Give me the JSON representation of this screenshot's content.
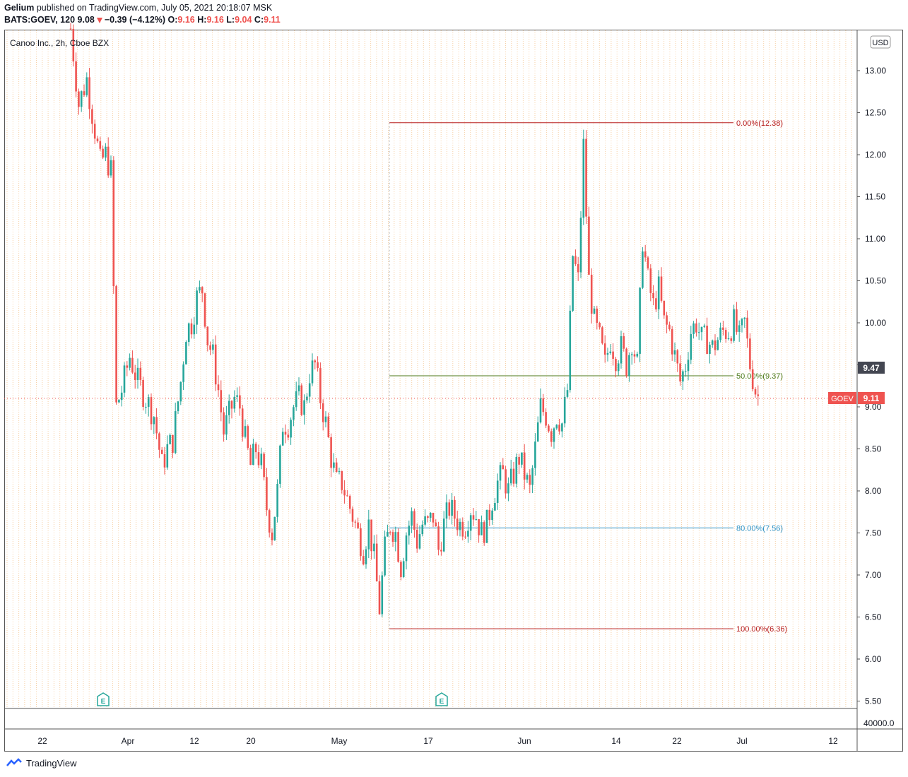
{
  "header": {
    "author": "Gelium",
    "published_text": "published on TradingView.com, July 05, 2021 20:18:07 MSK",
    "symbol": "BATS:GOEV, 120",
    "last": "9.08",
    "change": "−0.39 (−4.12%)",
    "o_label": "O:",
    "o": "9.16",
    "h_label": "H:",
    "h": "9.16",
    "l_label": "L:",
    "l": "9.04",
    "c_label": "C:",
    "c": "9.11"
  },
  "legend": {
    "title": "Canoo Inc., 2h, Cboe BZX"
  },
  "currency": "USD",
  "footer": {
    "brand": "TradingView"
  },
  "colors": {
    "up": "#26a69a",
    "down": "#ef5350",
    "fib0": "#b71c1c",
    "fib50": "#4c7a1a",
    "fib80": "#2a8fc2",
    "fib100": "#b71c1c"
  },
  "chart_data": {
    "type": "candlestick",
    "symbol": "GOEV",
    "last_price": 9.11,
    "crosshair_price": 9.47,
    "volume_label": "40000.0",
    "y_ticks": [
      13.0,
      12.5,
      12.0,
      11.5,
      11.0,
      10.5,
      10.0,
      9.5,
      9.0,
      8.5,
      8.0,
      7.5,
      7.0,
      6.5,
      6.0,
      5.5
    ],
    "y_tick_labels": [
      "13.00",
      "12.50",
      "12.00",
      "11.50",
      "11.00",
      "10.50",
      "10.00",
      "9.50",
      "9.00",
      "8.50",
      "8.00",
      "7.50",
      "7.00",
      "6.50",
      "6.00",
      "5.50"
    ],
    "x_ticks": [
      "22",
      "Apr",
      "12",
      "20",
      "May",
      "17",
      "Jun",
      "14",
      "22",
      "Jul",
      "12"
    ],
    "fib_levels": [
      {
        "label": "0.00%(12.38)",
        "value": 12.38
      },
      {
        "label": "50.00%(9.37)",
        "value": 9.37
      },
      {
        "label": "80.00%(7.56)",
        "value": 7.56
      },
      {
        "label": "100.00%(6.36)",
        "value": 6.36
      }
    ],
    "earnings_markers": [
      "E",
      "E"
    ],
    "path": [
      [
        0,
        13.5
      ],
      [
        3,
        12.6
      ],
      [
        6,
        12.9
      ],
      [
        9,
        12.3
      ],
      [
        11,
        11.9
      ],
      [
        13,
        12.0
      ],
      [
        15,
        11.8
      ],
      [
        17,
        9.0
      ],
      [
        19,
        9.2
      ],
      [
        22,
        9.6
      ],
      [
        25,
        9.3
      ],
      [
        28,
        9.1
      ],
      [
        31,
        8.9
      ],
      [
        34,
        8.3
      ],
      [
        36,
        8.5
      ],
      [
        38,
        8.6
      ],
      [
        41,
        9.3
      ],
      [
        43,
        9.9
      ],
      [
        45,
        10.0
      ],
      [
        47,
        10.3
      ],
      [
        49,
        10.4
      ],
      [
        51,
        9.8
      ],
      [
        53,
        9.6
      ],
      [
        55,
        9.2
      ],
      [
        57,
        8.7
      ],
      [
        59,
        8.9
      ],
      [
        61,
        9.1
      ],
      [
        63,
        9.0
      ],
      [
        65,
        8.6
      ],
      [
        67,
        8.3
      ],
      [
        69,
        8.5
      ],
      [
        71,
        8.3
      ],
      [
        73,
        7.8
      ],
      [
        75,
        7.5
      ],
      [
        77,
        8.0
      ],
      [
        79,
        8.8
      ],
      [
        81,
        8.8
      ],
      [
        83,
        9.0
      ],
      [
        85,
        9.1
      ],
      [
        87,
        9.0
      ],
      [
        89,
        9.4
      ],
      [
        91,
        9.5
      ],
      [
        93,
        9.1
      ],
      [
        95,
        8.8
      ],
      [
        97,
        8.4
      ],
      [
        99,
        8.1
      ],
      [
        101,
        8.1
      ],
      [
        103,
        7.9
      ],
      [
        105,
        7.7
      ],
      [
        107,
        7.5
      ],
      [
        109,
        7.3
      ],
      [
        111,
        7.6
      ],
      [
        113,
        7.2
      ],
      [
        115,
        6.6
      ],
      [
        117,
        7.3
      ],
      [
        119,
        7.6
      ],
      [
        121,
        7.5
      ],
      [
        123,
        7.1
      ],
      [
        125,
        7.5
      ],
      [
        127,
        7.7
      ],
      [
        129,
        7.4
      ],
      [
        131,
        7.6
      ],
      [
        133,
        7.6
      ],
      [
        135,
        7.7
      ],
      [
        137,
        7.3
      ],
      [
        139,
        7.6
      ],
      [
        141,
        7.8
      ],
      [
        143,
        7.7
      ],
      [
        145,
        7.6
      ],
      [
        147,
        7.6
      ],
      [
        149,
        7.8
      ],
      [
        151,
        7.7
      ],
      [
        153,
        7.5
      ],
      [
        155,
        7.6
      ],
      [
        157,
        7.9
      ],
      [
        159,
        8.1
      ],
      [
        161,
        8.2
      ],
      [
        163,
        8.0
      ],
      [
        165,
        8.2
      ],
      [
        167,
        8.4
      ],
      [
        169,
        8.2
      ],
      [
        171,
        8.0
      ],
      [
        173,
        8.5
      ],
      [
        175,
        9.0
      ],
      [
        177,
        8.9
      ],
      [
        179,
        8.7
      ],
      [
        181,
        8.9
      ],
      [
        183,
        8.8
      ],
      [
        185,
        9.2
      ],
      [
        187,
        10.8
      ],
      [
        189,
        10.5
      ],
      [
        191,
        12.1
      ],
      [
        193,
        10.5
      ],
      [
        195,
        10.0
      ],
      [
        197,
        9.8
      ],
      [
        199,
        9.5
      ],
      [
        201,
        9.8
      ],
      [
        203,
        9.6
      ],
      [
        205,
        9.7
      ],
      [
        207,
        9.5
      ],
      [
        209,
        9.8
      ],
      [
        211,
        9.5
      ],
      [
        213,
        11.0
      ],
      [
        215,
        10.5
      ],
      [
        217,
        10.2
      ],
      [
        219,
        10.4
      ],
      [
        221,
        10.0
      ],
      [
        223,
        9.9
      ],
      [
        225,
        9.6
      ],
      [
        227,
        9.3
      ],
      [
        229,
        9.5
      ],
      [
        231,
        9.9
      ],
      [
        233,
        10.0
      ],
      [
        235,
        9.8
      ],
      [
        237,
        9.8
      ],
      [
        239,
        9.7
      ],
      [
        241,
        9.8
      ],
      [
        243,
        9.9
      ],
      [
        245,
        9.9
      ],
      [
        247,
        10.0
      ],
      [
        249,
        9.8
      ],
      [
        251,
        10.0
      ],
      [
        253,
        9.5
      ],
      [
        255,
        9.2
      ],
      [
        257,
        9.05
      ]
    ]
  }
}
